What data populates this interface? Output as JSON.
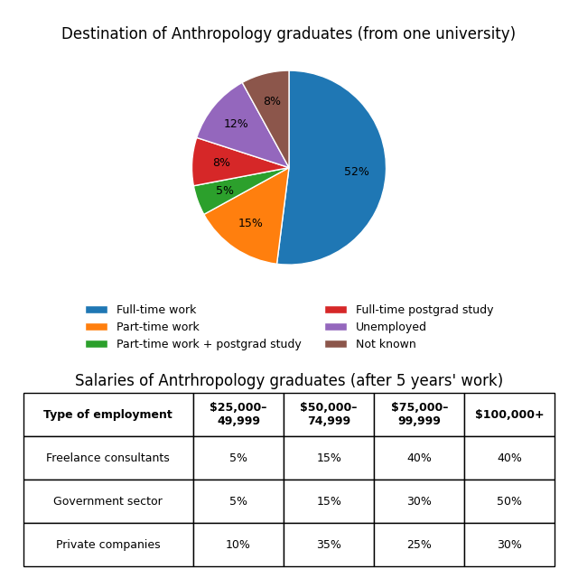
{
  "chart_data": [
    {
      "type": "pie",
      "title": "Destination of Anthropology graduates (from one university)",
      "categories": [
        "Full-time work",
        "Part-time work",
        "Part-time work + postgrad study",
        "Full-time postgrad study",
        "Unemployed",
        "Not known"
      ],
      "values": [
        52,
        15,
        5,
        8,
        12,
        8
      ],
      "value_labels": [
        "52%",
        "15%",
        "5%",
        "8%",
        "12%",
        "8%"
      ],
      "data_labels": true,
      "legend": "upper center"
    },
    {
      "type": "table",
      "title": "Salaries of Antrhropology graduates (after 5 years' work)",
      "columns": [
        "Type of employment",
        "$25,000–\n49,999",
        "$50,000–\n74,999",
        "$75,000–\n99,999",
        "$100,000+"
      ],
      "rows": [
        {
          "name": "Freelance consultants",
          "values": [
            5,
            15,
            40,
            40
          ],
          "value_labels": [
            "5%",
            "15%",
            "40%",
            "40%"
          ]
        },
        {
          "name": "Government sector",
          "values": [
            5,
            15,
            30,
            50
          ],
          "value_labels": [
            "5%",
            "15%",
            "30%",
            "50%"
          ]
        },
        {
          "name": "Private companies",
          "values": [
            10,
            35,
            25,
            30
          ],
          "value_labels": [
            "10%",
            "35%",
            "25%",
            "30%"
          ]
        }
      ]
    }
  ]
}
